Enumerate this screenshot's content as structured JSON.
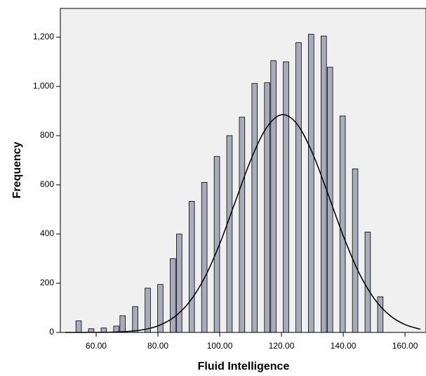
{
  "chart_data": {
    "type": "histogram",
    "x_label": "Fluid Intelligence",
    "y_label": "Frequency",
    "bins": [
      53.3,
      55.34,
      57.37,
      59.41,
      61.44,
      63.48,
      65.51,
      67.55,
      69.58,
      71.62,
      73.65,
      75.69,
      77.72,
      79.76,
      81.79,
      83.83,
      85.86,
      87.9,
      89.93,
      91.97,
      94.0,
      96.04,
      98.07,
      100.11,
      102.14,
      104.18,
      106.21,
      108.25,
      110.28,
      112.32,
      114.35,
      116.39,
      118.42,
      120.46,
      122.49,
      124.53,
      126.56,
      128.6,
      130.63,
      132.67,
      134.7,
      136.74,
      138.77,
      140.81,
      142.84,
      144.88,
      146.91,
      148.95,
      150.98,
      153.02
    ],
    "values": [
      47,
      0,
      15,
      0,
      18,
      0,
      26,
      68,
      0,
      105,
      0,
      180,
      0,
      195,
      0,
      300,
      400,
      0,
      533,
      0,
      610,
      0,
      715,
      0,
      800,
      0,
      875,
      0,
      1012,
      0,
      1015,
      1105,
      0,
      1100,
      0,
      1178,
      0,
      1212,
      0,
      1205,
      1078,
      0,
      880,
      0,
      665,
      0,
      408,
      0,
      145
    ],
    "color": "#a9abbc",
    "curve": {
      "x": [
        50,
        55,
        60,
        65,
        70,
        75,
        80,
        85,
        90,
        95,
        100,
        105,
        110,
        115,
        120,
        125,
        130,
        135,
        140,
        145,
        150,
        155,
        160,
        165
      ],
      "values": [
        0,
        0.1,
        0.4,
        1.2,
        3.8,
        10.6,
        26.7,
        60,
        121,
        220,
        360,
        530,
        699,
        829,
        885,
        848,
        730,
        565,
        393,
        245,
        138,
        70,
        32,
        13
      ],
      "color": "#000000"
    },
    "xlim": [
      48.4,
      166.8
    ],
    "ylim": [
      0,
      1317
    ],
    "xticks": [
      {
        "value": 60,
        "label": "60.00"
      },
      {
        "value": 80,
        "label": "80.00"
      },
      {
        "value": 100,
        "label": "100.00"
      },
      {
        "value": 120,
        "label": "120.00"
      },
      {
        "value": 140,
        "label": "140.00"
      },
      {
        "value": 160,
        "label": "160.00"
      }
    ],
    "yticks": [
      0,
      200,
      400,
      600,
      800,
      {
        "value": 1000,
        "label": "1,000"
      },
      {
        "value": 1200,
        "label": "1,200"
      }
    ]
  }
}
